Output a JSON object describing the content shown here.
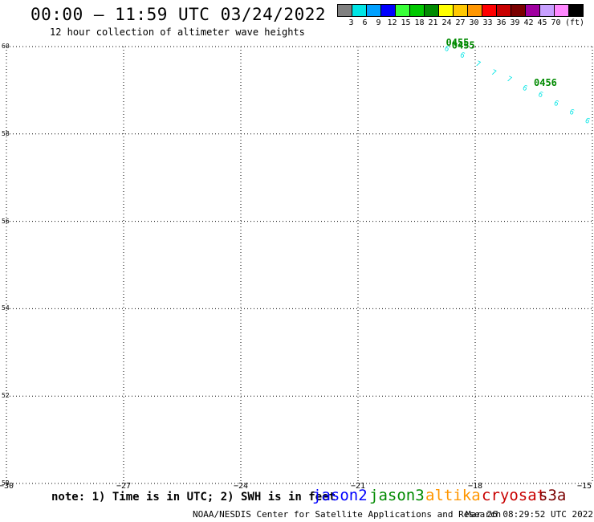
{
  "title": "00:00 – 11:59 UTC 03/24/2022",
  "subtitle": "12 hour collection of altimeter wave heights",
  "legend": {
    "colors": [
      "#808080",
      "#00e5e5",
      "#00a0ff",
      "#0000ff",
      "#39ff39",
      "#00c800",
      "#008a00",
      "#ffff00",
      "#ffc800",
      "#ff9600",
      "#ff0000",
      "#c80000",
      "#7a0000",
      "#a000a0",
      "#c8a0ff",
      "#ff88ff",
      "#000000"
    ],
    "labels": [
      "3",
      "6",
      "9",
      "12",
      "15",
      "18",
      "21",
      "24",
      "27",
      "30",
      "33",
      "36",
      "39",
      "42",
      "45",
      "70"
    ],
    "unit": "(ft)"
  },
  "map": {
    "y_ticks": [
      "60",
      "58",
      "56",
      "54",
      "52",
      "50"
    ],
    "x_ticks": [
      "−30",
      "−27",
      "−24",
      "−21",
      "−18",
      "−15"
    ],
    "track_times": [
      "0455",
      "0455",
      "0456"
    ],
    "track_color": "#00e5e5",
    "time_color": "#008a00"
  },
  "chart_data": {
    "type": "scatter",
    "title": "00:00 – 11:59 UTC 03/24/2022",
    "xlim": [
      -30,
      -15
    ],
    "ylim": [
      50,
      60
    ],
    "series": [
      {
        "name": "jason3",
        "color": "#00e5e5",
        "points": [
          {
            "lon": -18.8,
            "lat": 60.0,
            "swh": 6
          },
          {
            "lon": -18.4,
            "lat": 59.85,
            "swh": 6
          },
          {
            "lon": -18.0,
            "lat": 59.65,
            "swh": 7
          },
          {
            "lon": -17.6,
            "lat": 59.45,
            "swh": 7
          },
          {
            "lon": -17.2,
            "lat": 59.3,
            "swh": 7
          },
          {
            "lon": -16.8,
            "lat": 59.1,
            "swh": 6
          },
          {
            "lon": -16.4,
            "lat": 58.95,
            "swh": 6
          },
          {
            "lon": -16.0,
            "lat": 58.75,
            "swh": 6
          },
          {
            "lon": -15.6,
            "lat": 58.55,
            "swh": 6
          },
          {
            "lon": -15.2,
            "lat": 58.35,
            "swh": 6
          }
        ]
      }
    ]
  },
  "note": "note: 1) Time is in UTC; 2) SWH is in feet",
  "satellites": [
    {
      "name": "jason2",
      "color": "#0000ff"
    },
    {
      "name": "jason3",
      "color": "#008a00"
    },
    {
      "name": "altika",
      "color": "#ff9600"
    },
    {
      "name": "cryosat",
      "color": "#c80000"
    },
    {
      "name": "s3a",
      "color": "#7a0000"
    }
  ],
  "credit": "NOAA/NESDIS Center for Satellite Applications and Research",
  "timestamp": "Mar 26 08:29:52 UTC 2022"
}
